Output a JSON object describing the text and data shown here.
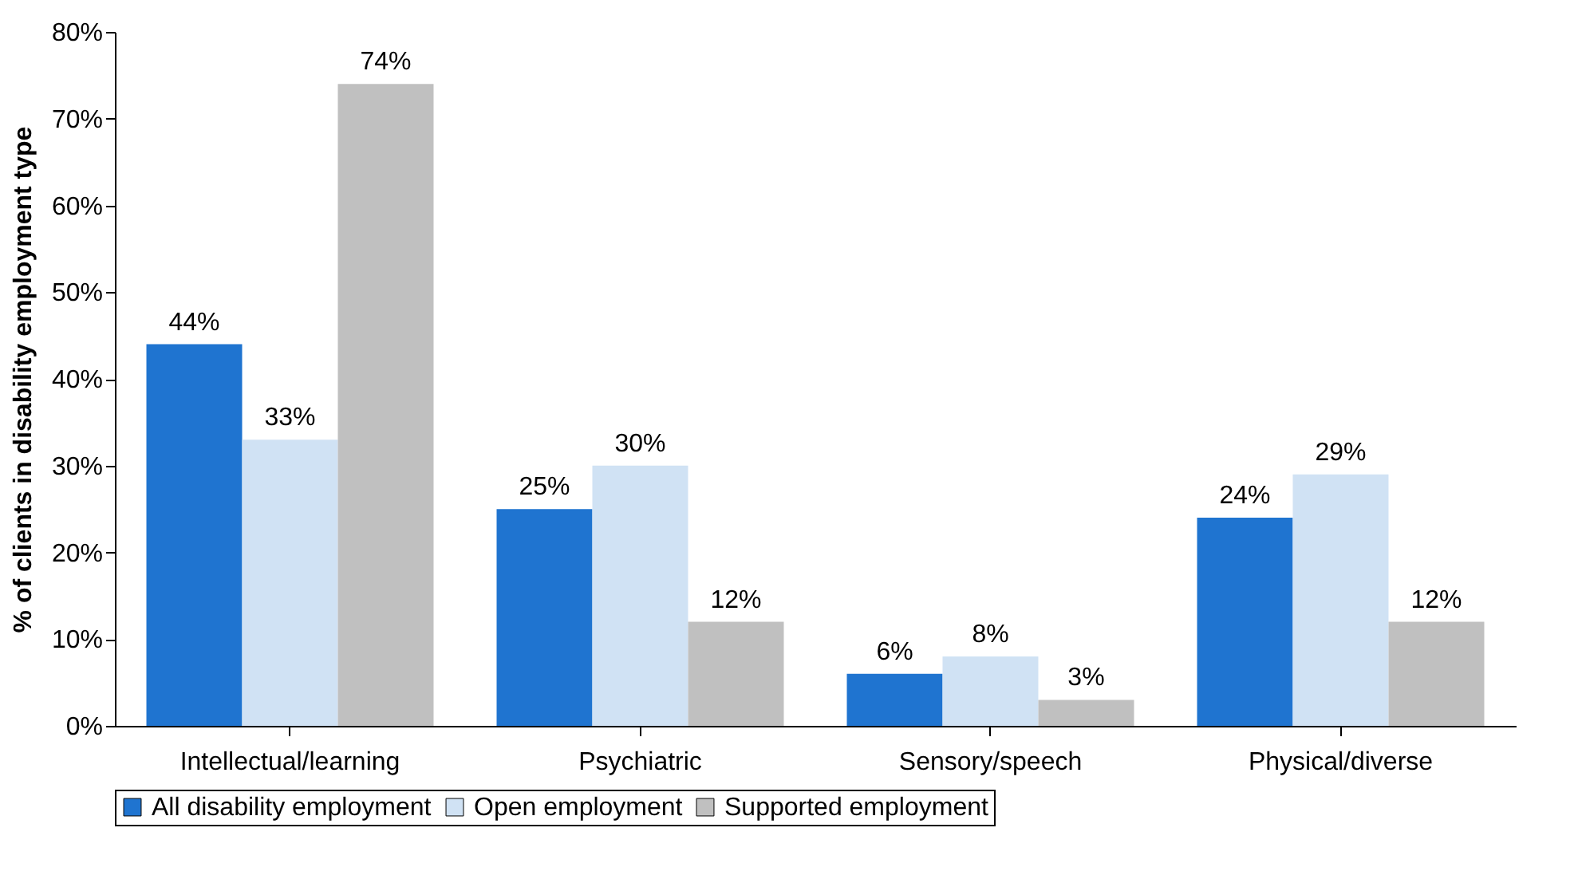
{
  "chart_data": {
    "type": "bar",
    "ylabel": "% of clients in disability employment type",
    "categories": [
      "Intellectual/learning",
      "Psychiatric",
      "Sensory/speech",
      "Physical/diverse"
    ],
    "series": [
      {
        "name": "All disability employment",
        "color": "#1f74d0",
        "values": [
          44,
          25,
          6,
          24
        ],
        "value_labels": [
          "44%",
          "25%",
          "6%",
          "24%"
        ]
      },
      {
        "name": "Open employment",
        "color": "#d0e2f4",
        "values": [
          33,
          30,
          8,
          29
        ],
        "value_labels": [
          "33%",
          "30%",
          "8%",
          "29%"
        ]
      },
      {
        "name": "Supported employment",
        "color": "#c0c0c0",
        "values": [
          74,
          12,
          3,
          12
        ],
        "value_labels": [
          "74%",
          "12%",
          "3%",
          "12%"
        ]
      }
    ],
    "ylim": [
      0,
      80
    ],
    "yticks": [
      {
        "value": 0,
        "label": "0%"
      },
      {
        "value": 10,
        "label": "10%"
      },
      {
        "value": 20,
        "label": "20%"
      },
      {
        "value": 30,
        "label": "30%"
      },
      {
        "value": 40,
        "label": "40%"
      },
      {
        "value": 50,
        "label": "50%"
      },
      {
        "value": 60,
        "label": "60%"
      },
      {
        "value": 70,
        "label": "70%"
      },
      {
        "value": 80,
        "label": "80%"
      }
    ],
    "grid": false,
    "legend": "bottom"
  }
}
